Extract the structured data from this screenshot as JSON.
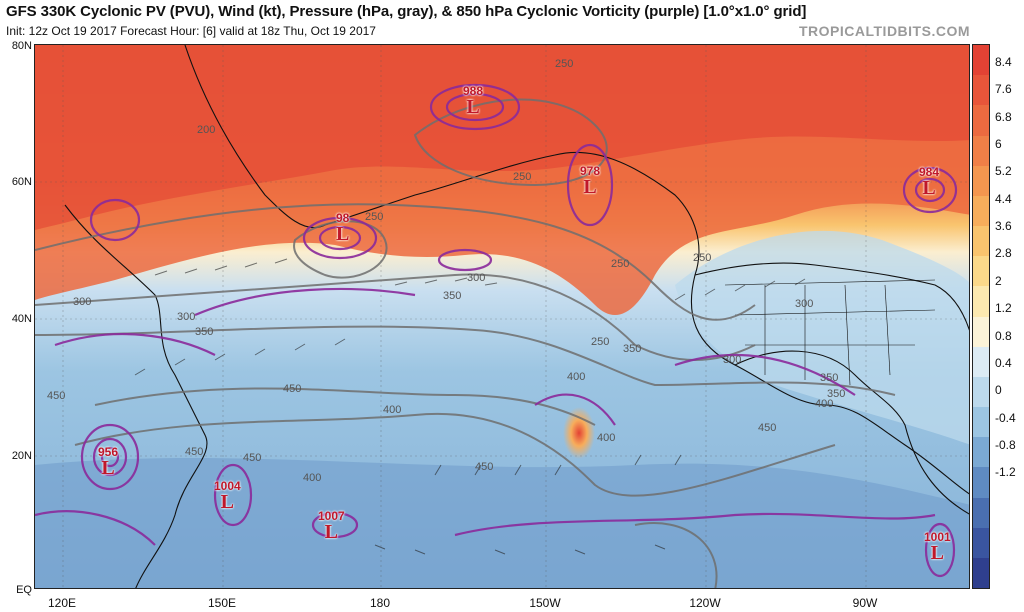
{
  "header": {
    "title": "GFS 330K Cyclonic PV (PVU), Wind (kt), Pressure (hPa, gray), & 850 hPa Cyclonic Vorticity (purple) [1.0°x1.0° grid]",
    "subtitle": "Init: 12z Oct 19 2017   Forecast Hour: [6]   valid at 18z Thu, Oct 19 2017",
    "brand": "TROPICALTIDBITS.COM"
  },
  "axes": {
    "lat_labels": [
      "80N",
      "60N",
      "40N",
      "20N",
      "EQ"
    ],
    "lon_labels": [
      "120E",
      "150E",
      "180",
      "150W",
      "120W",
      "90W"
    ]
  },
  "colorbar": {
    "labels": [
      "8.4",
      "7.6",
      "6.8",
      "6",
      "5.2",
      "4.4",
      "3.6",
      "2.8",
      "2",
      "1.2",
      "0.8",
      "0.4",
      "0",
      "-0.4",
      "-0.8",
      "-1.2"
    ],
    "colors": [
      "#e34234",
      "#e8553a",
      "#ec6a40",
      "#f07f47",
      "#f4964f",
      "#f7ad5b",
      "#f9c46e",
      "#fbd98a",
      "#fce9b0",
      "#fbf3d8",
      "#dcebf4",
      "#bcd9ec",
      "#9cc5e2",
      "#7ba9d3",
      "#5f8bc2",
      "#4a6fb0",
      "#3a55a0",
      "#2f3f8e"
    ]
  },
  "lows": [
    {
      "pressure": "988",
      "letter": "L"
    },
    {
      "pressure": "978",
      "letter": "L"
    },
    {
      "pressure": "98",
      "letter": "L"
    },
    {
      "pressure": "984",
      "letter": "L"
    },
    {
      "pressure": "956",
      "letter": "L"
    },
    {
      "pressure": "1004",
      "letter": "L"
    },
    {
      "pressure": "1007",
      "letter": "L"
    },
    {
      "pressure": "1001",
      "letter": "L"
    }
  ],
  "isobar_labels": [
    "250",
    "200",
    "250",
    "250",
    "250",
    "300",
    "350",
    "300",
    "350",
    "250",
    "350",
    "300",
    "400",
    "450",
    "400",
    "450",
    "450",
    "400",
    "400",
    "450",
    "250",
    "300",
    "350",
    "300",
    "350",
    "400",
    "450",
    "450"
  ],
  "colors": {
    "pv_high": "#e8553a",
    "pv_low": "#7fa8d1",
    "vorticity": "#8b2a9b",
    "isobar": "#6f6f6f",
    "low_label": "#c0182a"
  }
}
